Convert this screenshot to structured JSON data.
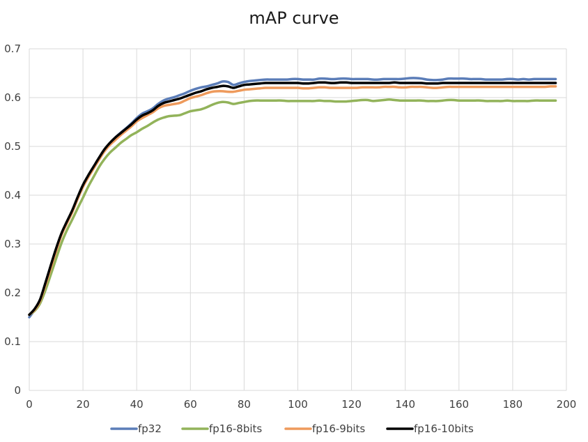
{
  "chart_data": {
    "type": "line",
    "title": "mAP curve",
    "xlabel": "",
    "ylabel": "",
    "xlim": [
      0,
      200
    ],
    "ylim": [
      0,
      0.7
    ],
    "xticks": [
      "0",
      "20",
      "40",
      "60",
      "80",
      "100",
      "120",
      "140",
      "160",
      "180",
      "200"
    ],
    "yticks": [
      "0",
      "0.1",
      "0.2",
      "0.3",
      "0.4",
      "0.5",
      "0.6",
      "0.7"
    ],
    "grid": true,
    "legend_position": "bottom",
    "x": [
      0,
      2,
      4,
      6,
      8,
      10,
      12,
      14,
      16,
      18,
      20,
      22,
      24,
      26,
      28,
      30,
      32,
      34,
      36,
      38,
      40,
      42,
      44,
      46,
      48,
      50,
      52,
      54,
      56,
      58,
      60,
      62,
      64,
      66,
      68,
      70,
      72,
      74,
      76,
      78,
      80,
      82,
      84,
      86,
      88,
      90,
      92,
      94,
      96,
      98,
      100,
      102,
      104,
      106,
      108,
      110,
      112,
      114,
      116,
      118,
      120,
      122,
      124,
      126,
      128,
      130,
      132,
      134,
      136,
      138,
      140,
      142,
      144,
      146,
      148,
      150,
      152,
      154,
      156,
      158,
      160,
      162,
      164,
      166,
      168,
      170,
      172,
      174,
      176,
      178,
      180,
      182,
      184,
      186,
      188,
      190,
      192,
      194,
      196
    ],
    "series": [
      {
        "name": "fp32",
        "color": "#5b7db8",
        "values": [
          0.15,
          0.165,
          0.185,
          0.22,
          0.255,
          0.29,
          0.32,
          0.345,
          0.368,
          0.395,
          0.42,
          0.44,
          0.458,
          0.476,
          0.493,
          0.507,
          0.518,
          0.528,
          0.537,
          0.547,
          0.558,
          0.567,
          0.572,
          0.578,
          0.587,
          0.594,
          0.598,
          0.601,
          0.605,
          0.609,
          0.614,
          0.618,
          0.621,
          0.623,
          0.626,
          0.629,
          0.633,
          0.632,
          0.626,
          0.629,
          0.632,
          0.634,
          0.635,
          0.636,
          0.637,
          0.637,
          0.637,
          0.637,
          0.637,
          0.638,
          0.638,
          0.637,
          0.637,
          0.637,
          0.639,
          0.639,
          0.638,
          0.638,
          0.639,
          0.639,
          0.638,
          0.638,
          0.638,
          0.638,
          0.637,
          0.637,
          0.638,
          0.638,
          0.638,
          0.638,
          0.639,
          0.64,
          0.64,
          0.639,
          0.637,
          0.636,
          0.636,
          0.637,
          0.639,
          0.639,
          0.639,
          0.639,
          0.638,
          0.638,
          0.638,
          0.637,
          0.637,
          0.637,
          0.637,
          0.638,
          0.638,
          0.637,
          0.638,
          0.637,
          0.638,
          0.638,
          0.638,
          0.638,
          0.638
        ]
      },
      {
        "name": "fp16-8bits",
        "color": "#92b35a",
        "values": [
          0.155,
          0.163,
          0.178,
          0.205,
          0.237,
          0.27,
          0.302,
          0.328,
          0.35,
          0.373,
          0.395,
          0.418,
          0.438,
          0.458,
          0.474,
          0.487,
          0.497,
          0.507,
          0.515,
          0.523,
          0.529,
          0.536,
          0.542,
          0.549,
          0.555,
          0.559,
          0.562,
          0.563,
          0.564,
          0.568,
          0.572,
          0.574,
          0.576,
          0.58,
          0.585,
          0.589,
          0.591,
          0.59,
          0.587,
          0.589,
          0.591,
          0.593,
          0.594,
          0.594,
          0.594,
          0.594,
          0.594,
          0.594,
          0.593,
          0.593,
          0.593,
          0.593,
          0.593,
          0.593,
          0.594,
          0.593,
          0.593,
          0.592,
          0.592,
          0.592,
          0.593,
          0.594,
          0.595,
          0.595,
          0.593,
          0.594,
          0.595,
          0.596,
          0.595,
          0.594,
          0.594,
          0.594,
          0.594,
          0.594,
          0.593,
          0.593,
          0.593,
          0.594,
          0.595,
          0.595,
          0.594,
          0.594,
          0.594,
          0.594,
          0.594,
          0.593,
          0.593,
          0.593,
          0.593,
          0.594,
          0.593,
          0.593,
          0.593,
          0.593,
          0.594,
          0.594,
          0.594,
          0.594,
          0.594
        ]
      },
      {
        "name": "fp16-9bits",
        "color": "#ee9a5c",
        "values": [
          0.155,
          0.165,
          0.183,
          0.215,
          0.25,
          0.285,
          0.318,
          0.342,
          0.365,
          0.392,
          0.417,
          0.437,
          0.455,
          0.473,
          0.49,
          0.503,
          0.513,
          0.523,
          0.532,
          0.541,
          0.551,
          0.558,
          0.564,
          0.57,
          0.578,
          0.583,
          0.585,
          0.587,
          0.589,
          0.594,
          0.599,
          0.602,
          0.605,
          0.609,
          0.612,
          0.613,
          0.613,
          0.612,
          0.612,
          0.614,
          0.616,
          0.617,
          0.618,
          0.619,
          0.62,
          0.62,
          0.62,
          0.62,
          0.62,
          0.62,
          0.62,
          0.619,
          0.619,
          0.62,
          0.621,
          0.621,
          0.62,
          0.62,
          0.62,
          0.62,
          0.62,
          0.62,
          0.621,
          0.621,
          0.621,
          0.621,
          0.622,
          0.622,
          0.622,
          0.621,
          0.621,
          0.622,
          0.622,
          0.622,
          0.621,
          0.62,
          0.62,
          0.621,
          0.622,
          0.622,
          0.622,
          0.622,
          0.622,
          0.622,
          0.622,
          0.622,
          0.622,
          0.622,
          0.622,
          0.622,
          0.622,
          0.622,
          0.622,
          0.622,
          0.622,
          0.622,
          0.622,
          0.623,
          0.623
        ]
      },
      {
        "name": "fp16-10bits",
        "color": "#000000",
        "values": [
          0.155,
          0.167,
          0.186,
          0.22,
          0.256,
          0.291,
          0.322,
          0.346,
          0.369,
          0.396,
          0.421,
          0.441,
          0.459,
          0.477,
          0.494,
          0.507,
          0.518,
          0.527,
          0.536,
          0.545,
          0.555,
          0.563,
          0.568,
          0.574,
          0.583,
          0.589,
          0.592,
          0.595,
          0.598,
          0.602,
          0.606,
          0.61,
          0.613,
          0.617,
          0.62,
          0.622,
          0.624,
          0.623,
          0.62,
          0.623,
          0.626,
          0.627,
          0.628,
          0.629,
          0.63,
          0.63,
          0.63,
          0.63,
          0.63,
          0.63,
          0.63,
          0.629,
          0.629,
          0.63,
          0.631,
          0.631,
          0.63,
          0.63,
          0.631,
          0.631,
          0.63,
          0.63,
          0.63,
          0.63,
          0.63,
          0.63,
          0.63,
          0.63,
          0.631,
          0.63,
          0.63,
          0.63,
          0.63,
          0.63,
          0.629,
          0.629,
          0.629,
          0.63,
          0.63,
          0.63,
          0.63,
          0.63,
          0.63,
          0.63,
          0.63,
          0.63,
          0.63,
          0.63,
          0.63,
          0.63,
          0.63,
          0.63,
          0.63,
          0.63,
          0.63,
          0.63,
          0.63,
          0.63,
          0.63
        ]
      }
    ]
  }
}
